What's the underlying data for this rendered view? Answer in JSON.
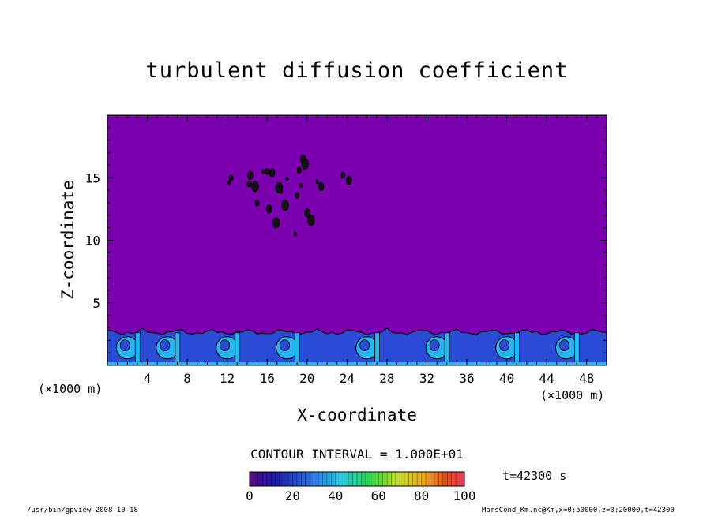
{
  "chart_data": {
    "type": "heatmap",
    "title": "turbulent diffusion coefficient",
    "xlabel": "X-coordinate",
    "ylabel": "Z-coordinate",
    "x_unit": "(×1000 m)",
    "y_unit": "(×1000 m)",
    "xlim": [
      0,
      50
    ],
    "ylim": [
      0,
      20
    ],
    "x_ticks": [
      4,
      8,
      12,
      16,
      20,
      24,
      28,
      32,
      36,
      40,
      44,
      48
    ],
    "y_ticks": [
      5,
      10,
      15
    ],
    "contour_interval": "CONTOUR INTERVAL = 1.000E+01",
    "colorbar": {
      "min": 0,
      "max": 100,
      "ticks": [
        0,
        20,
        40,
        60,
        80,
        100
      ]
    },
    "background_value": 0,
    "boundary_layer_top": 3,
    "plumes_x": [
      2,
      6,
      12,
      18,
      26,
      33,
      40,
      46
    ],
    "patches": [
      {
        "x": 12.2,
        "z": 14.6
      },
      {
        "x": 12.4,
        "z": 15.0
      },
      {
        "x": 14.3,
        "z": 15.2
      },
      {
        "x": 14.8,
        "z": 14.3
      },
      {
        "x": 15.6,
        "z": 15.5
      },
      {
        "x": 16.0,
        "z": 15.5
      },
      {
        "x": 16.5,
        "z": 15.4
      },
      {
        "x": 17.2,
        "z": 14.2
      },
      {
        "x": 17.4,
        "z": 13.9
      },
      {
        "x": 15.0,
        "z": 13.0
      },
      {
        "x": 16.2,
        "z": 12.5
      },
      {
        "x": 16.9,
        "z": 11.4
      },
      {
        "x": 18.0,
        "z": 14.9
      },
      {
        "x": 19.2,
        "z": 15.6
      },
      {
        "x": 19.6,
        "z": 16.5
      },
      {
        "x": 19.8,
        "z": 16.1
      },
      {
        "x": 19.4,
        "z": 14.4
      },
      {
        "x": 19.0,
        "z": 13.6
      },
      {
        "x": 20.0,
        "z": 12.2
      },
      {
        "x": 20.4,
        "z": 11.6
      },
      {
        "x": 21.0,
        "z": 14.7
      },
      {
        "x": 23.6,
        "z": 15.2
      },
      {
        "x": 24.2,
        "z": 14.8
      },
      {
        "x": 17.8,
        "z": 12.8
      },
      {
        "x": 18.8,
        "z": 10.5
      },
      {
        "x": 14.2,
        "z": 14.5
      },
      {
        "x": 21.4,
        "z": 14.3
      }
    ]
  },
  "time_label": "t=42300 s",
  "footer": {
    "left": "/usr/bin/gpview  2008-10-18",
    "right": "MarsCond_Km.nc@Km,x=0:50000,z=0:20000,t=42300"
  },
  "colors": {
    "background_fill": "#7b00b0",
    "low_turbulence": "#2a4bd6",
    "mid_turbulence": "#26b6f0"
  }
}
